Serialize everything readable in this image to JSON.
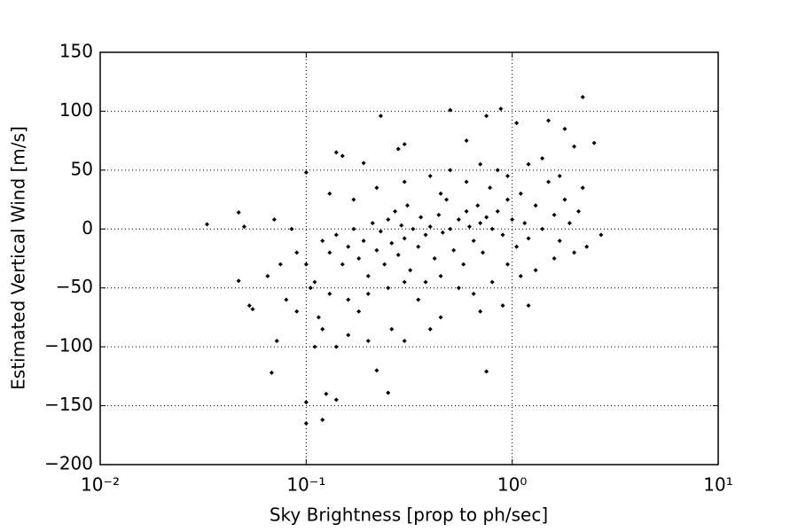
{
  "chart_data": {
    "type": "scatter",
    "xlabel": "Sky Brightness [prop to ph/sec]",
    "ylabel": "Estimated Vertical Wind [m/s]",
    "xscale": "log",
    "grid": true,
    "color": "#000000",
    "xlim": [
      0.01,
      10
    ],
    "xticks": [
      {
        "value": 0.01,
        "label": "10⁻²"
      },
      {
        "value": 0.1,
        "label": "10⁻¹"
      },
      {
        "value": 1,
        "label": "10⁰"
      },
      {
        "value": 10,
        "label": "10¹"
      }
    ],
    "ylim": [
      -200,
      150
    ],
    "yticks": [
      {
        "value": -200,
        "label": "−200"
      },
      {
        "value": -150,
        "label": "−150"
      },
      {
        "value": -100,
        "label": "−100"
      },
      {
        "value": -50,
        "label": "−50"
      },
      0,
      50,
      100,
      150
    ],
    "x": [
      0.033,
      0.047,
      0.047,
      0.05,
      0.053,
      0.055,
      0.068,
      0.07,
      0.072,
      0.1,
      0.1,
      0.12,
      0.125,
      0.14,
      0.23,
      0.25,
      0.5,
      0.75,
      0.75,
      0.88,
      2.2,
      2.5,
      2.7,
      1.5,
      1.05,
      0.1,
      0.14,
      0.19,
      0.15,
      0.3,
      0.28,
      0.6,
      1.8,
      2.0,
      0.22,
      0.2,
      0.4,
      1.2,
      0.9,
      0.065,
      0.08,
      0.09,
      0.11,
      0.115,
      0.12,
      0.13,
      0.14,
      0.15,
      0.16,
      0.17,
      0.18,
      0.19,
      0.2,
      0.21,
      0.22,
      0.23,
      0.24,
      0.25,
      0.26,
      0.27,
      0.28,
      0.29,
      0.3,
      0.31,
      0.32,
      0.33,
      0.35,
      0.36,
      0.38,
      0.4,
      0.42,
      0.44,
      0.46,
      0.48,
      0.5,
      0.52,
      0.55,
      0.58,
      0.6,
      0.62,
      0.65,
      0.68,
      0.7,
      0.72,
      0.75,
      0.78,
      0.8,
      0.85,
      0.9,
      0.95,
      1.0,
      1.05,
      1.1,
      1.15,
      1.2,
      1.3,
      1.4,
      1.5,
      1.6,
      1.7,
      1.8,
      1.9,
      2.1,
      2.3,
      0.11,
      0.13,
      0.16,
      0.18,
      0.2,
      0.25,
      0.3,
      0.35,
      0.45,
      0.55,
      0.65,
      0.8,
      0.95,
      1.1,
      0.13,
      0.17,
      0.22,
      0.3,
      0.4,
      0.5,
      0.6,
      0.7,
      0.85,
      1.2,
      1.4,
      1.7,
      0.09,
      0.085,
      0.075,
      0.1,
      0.105,
      0.12,
      0.14,
      0.16,
      0.26,
      0.3,
      0.45,
      0.7,
      1.3,
      1.6,
      2.0,
      2.2,
      0.95,
      0.45,
      0.38
    ],
    "values": [
      4,
      14,
      -44,
      2,
      -65,
      -68,
      -122,
      8,
      -95,
      -165,
      -147,
      -162,
      -140,
      -145,
      96,
      -139,
      101,
      -121,
      96,
      102,
      112,
      73,
      -5,
      92,
      90,
      48,
      65,
      56,
      62,
      72,
      68,
      75,
      85,
      70,
      -120,
      -95,
      -85,
      -65,
      -65,
      -40,
      -60,
      -70,
      -100,
      -75,
      -10,
      -20,
      -5,
      -30,
      -15,
      0,
      -25,
      -10,
      -40,
      5,
      -18,
      -2,
      -30,
      8,
      -12,
      15,
      -22,
      3,
      -8,
      20,
      -35,
      0,
      -15,
      10,
      -5,
      2,
      -25,
      12,
      -3,
      25,
      0,
      -18,
      8,
      -30,
      15,
      2,
      -10,
      20,
      5,
      -20,
      10,
      35,
      0,
      15,
      -5,
      25,
      8,
      -15,
      30,
      5,
      -8,
      20,
      0,
      40,
      12,
      -10,
      25,
      5,
      15,
      -15,
      -45,
      -55,
      -60,
      -70,
      -55,
      -50,
      -45,
      -60,
      -40,
      -50,
      -55,
      -45,
      -30,
      -40,
      30,
      25,
      35,
      40,
      45,
      50,
      40,
      55,
      50,
      55,
      60,
      45,
      -20,
      0,
      -30,
      -30,
      -50,
      -85,
      -100,
      -90,
      -85,
      -95,
      -75,
      -70,
      -35,
      -25,
      -20,
      35,
      45,
      30,
      -45
    ]
  }
}
